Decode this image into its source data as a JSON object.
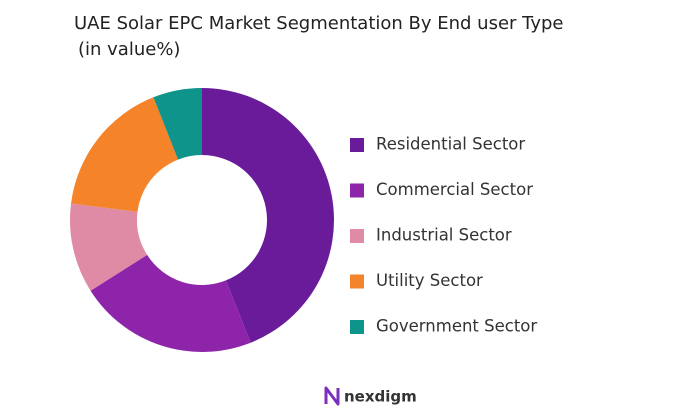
{
  "chart_data": {
    "type": "donut",
    "title": "UAE Solar EPC  Market Segmentation By End user Type",
    "subtitle": "(in value%)",
    "categories": [
      "Residential Sector",
      "Commercial Sector",
      "Industrial Sector",
      "Utility Sector",
      "Government Sector"
    ],
    "values": [
      44,
      22,
      11,
      17,
      6
    ],
    "colors": [
      "#6a1b9a",
      "#8e24aa",
      "#e08ba5",
      "#f5832a",
      "#0e948a"
    ],
    "legend": "right"
  },
  "brand": "nexdigm"
}
